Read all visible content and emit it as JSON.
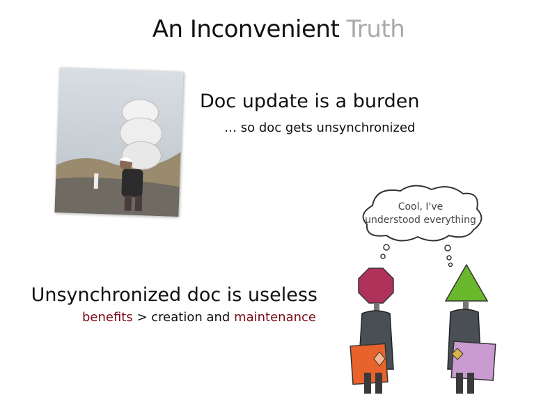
{
  "slide": {
    "title_main": "An Inconvenient",
    "title_accent": "Truth",
    "point1": {
      "heading": "Doc update is a burden",
      "subtext": "… so doc gets unsynchronized"
    },
    "point2": {
      "heading": "Unsynchronized doc is useless",
      "sub_part1": "benefits",
      "sub_part2": " > creation and ",
      "sub_part3": "maintenance"
    },
    "cartoon": {
      "bubble_line1": "Cool, I've",
      "bubble_line2": "understood everything"
    }
  },
  "colors": {
    "title_accent": "#aaaaaa",
    "highlight": "#7a0a14"
  },
  "icons": [
    "porter-photo",
    "thought-bubble",
    "octagon-head-person",
    "triangle-head-person"
  ]
}
